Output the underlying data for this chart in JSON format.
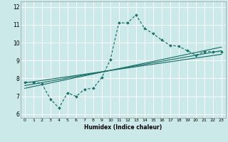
{
  "xlabel": "Humidex (Indice chaleur)",
  "xlim": [
    -0.5,
    23.5
  ],
  "ylim": [
    5.8,
    12.3
  ],
  "yticks": [
    6,
    7,
    8,
    9,
    10,
    11,
    12
  ],
  "xticks": [
    0,
    1,
    2,
    3,
    4,
    5,
    6,
    7,
    8,
    9,
    10,
    11,
    12,
    13,
    14,
    15,
    16,
    17,
    18,
    19,
    20,
    21,
    22,
    23
  ],
  "background_color": "#cce9e9",
  "grid_color": "#ffffff",
  "line_color": "#1a7068",
  "data_line": {
    "x": [
      0,
      1,
      2,
      3,
      4,
      5,
      6,
      7,
      8,
      9,
      10,
      11,
      12,
      13,
      14,
      15,
      16,
      17,
      18,
      19,
      20,
      21,
      22,
      23
    ],
    "y": [
      7.8,
      7.8,
      7.7,
      6.85,
      6.35,
      7.2,
      7.0,
      7.4,
      7.45,
      8.05,
      9.05,
      11.1,
      11.1,
      11.55,
      10.8,
      10.5,
      10.15,
      9.85,
      9.8,
      9.55,
      9.3,
      9.5,
      9.5,
      9.5
    ]
  },
  "regression_lines": [
    {
      "x": [
        0,
        23
      ],
      "y": [
        7.75,
        9.35
      ]
    },
    {
      "x": [
        0,
        23
      ],
      "y": [
        7.6,
        9.55
      ]
    },
    {
      "x": [
        0,
        23
      ],
      "y": [
        7.45,
        9.75
      ]
    }
  ]
}
